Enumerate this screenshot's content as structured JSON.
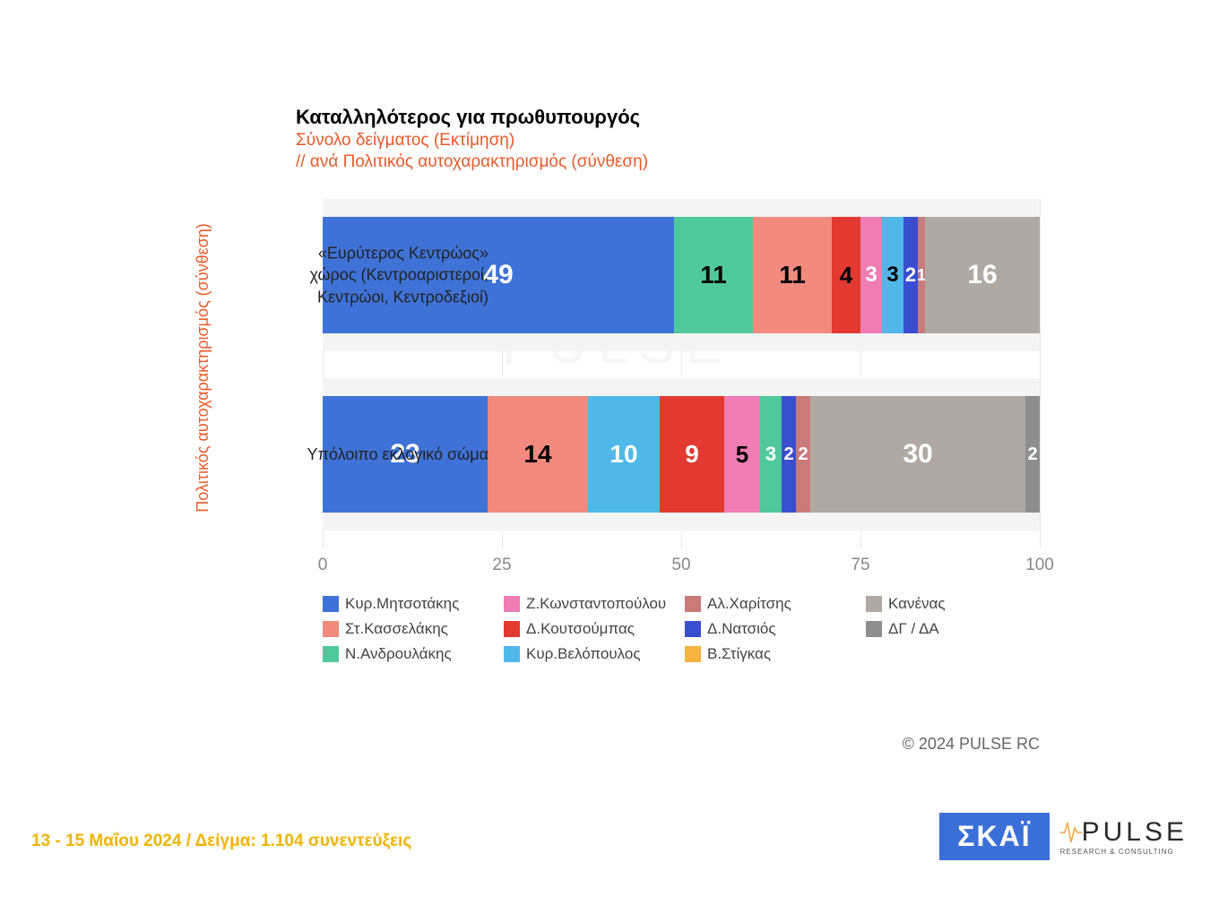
{
  "chart": {
    "type": "stacked-bar-horizontal",
    "title": "Καταλληλότερος για πρωθυπουργός",
    "subtitle1": "Σύνολο δείγματος   (Εκτίμηση)",
    "subtitle2": " // ανά Πολιτικός αυτοχαρακτηρισμός (σύνθεση)",
    "y_axis_title": "Πολιτικός αυτοχαρακτηρισμός (σύνθεση)",
    "background_color": "#ffffff",
    "row_bg_color": "#f4f4f4",
    "grid_color": "#e8e8e8",
    "title_fontsize": 22,
    "subtitle_fontsize": 19,
    "subtitle_color": "#e85a2a",
    "xlim": [
      0,
      100
    ],
    "xticks": [
      0,
      25,
      50,
      75,
      100
    ],
    "xtick_labels": [
      "0",
      "25",
      "50",
      "75",
      "100"
    ],
    "xtick_color": "#888888",
    "series": [
      {
        "key": "mitsotakis",
        "name": "Κυρ.Μητσοτάκης",
        "color": "#3f72d6"
      },
      {
        "key": "kasselakis",
        "name": "Στ.Κασσελάκης",
        "color": "#f28a7e"
      },
      {
        "key": "androulakis",
        "name": "Ν.Ανδρουλάκης",
        "color": "#4fc99b"
      },
      {
        "key": "konstantopoulou",
        "name": "Ζ.Κωνσταντοπούλου",
        "color": "#ef7cb3"
      },
      {
        "key": "koutsoumpas",
        "name": "Δ.Κουτσούμπας",
        "color": "#e23a30"
      },
      {
        "key": "velopoulos",
        "name": "Κυρ.Βελόπουλος",
        "color": "#4fb8e8"
      },
      {
        "key": "charitsis",
        "name": "Αλ.Χαρίτσης",
        "color": "#c97a7a"
      },
      {
        "key": "natsios",
        "name": "Δ.Νατσιός",
        "color": "#3a4fd0"
      },
      {
        "key": "stigkas",
        "name": "Β.Στίγκας",
        "color": "#f5b342"
      },
      {
        "key": "none",
        "name": "Κανένας",
        "color": "#b0a9a3"
      },
      {
        "key": "dk",
        "name": "ΔΓ / ΔΑ",
        "color": "#8e8e8e"
      }
    ],
    "rows": [
      {
        "label": "«Ευρύτερος Κεντρώος» χώρος (Κεντροαριστεροί, Κεντρώοι, Κεντροδεξιοί)",
        "segments": [
          {
            "series": "mitsotakis",
            "value": 49,
            "label": "49",
            "label_color": "#ffffff",
            "label_size": 30
          },
          {
            "series": "androulakis",
            "value": 11,
            "label": "11",
            "label_color": "#000000",
            "label_size": 28
          },
          {
            "series": "kasselakis",
            "value": 11,
            "label": "11",
            "label_color": "#000000",
            "label_size": 28
          },
          {
            "series": "koutsoumpas",
            "value": 4,
            "label": "4",
            "label_color": "#000000",
            "label_size": 26
          },
          {
            "series": "konstantopoulou",
            "value": 3,
            "label": "3",
            "label_color": "#ffffff",
            "label_size": 24
          },
          {
            "series": "velopoulos",
            "value": 3,
            "label": "3",
            "label_color": "#000000",
            "label_size": 24
          },
          {
            "series": "natsios",
            "value": 2,
            "label": "2",
            "label_color": "#ffffff",
            "label_size": 22
          },
          {
            "series": "charitsis",
            "value": 1,
            "label": "1",
            "label_color": "#ffffff",
            "label_size": 18
          },
          {
            "series": "none",
            "value": 16,
            "label": "16",
            "label_color": "#ffffff",
            "label_size": 30
          }
        ]
      },
      {
        "label": "Υπόλοιπο εκλογικό σώμα",
        "segments": [
          {
            "series": "mitsotakis",
            "value": 23,
            "label": "23",
            "label_color": "#ffffff",
            "label_size": 30
          },
          {
            "series": "kasselakis",
            "value": 14,
            "label": "14",
            "label_color": "#000000",
            "label_size": 28
          },
          {
            "series": "velopoulos",
            "value": 10,
            "label": "10",
            "label_color": "#ffffff",
            "label_size": 28
          },
          {
            "series": "koutsoumpas",
            "value": 9,
            "label": "9",
            "label_color": "#ffffff",
            "label_size": 28
          },
          {
            "series": "konstantopoulou",
            "value": 5,
            "label": "5",
            "label_color": "#000000",
            "label_size": 26
          },
          {
            "series": "androulakis",
            "value": 3,
            "label": "3",
            "label_color": "#ffffff",
            "label_size": 22
          },
          {
            "series": "natsios",
            "value": 2,
            "label": "2",
            "label_color": "#ffffff",
            "label_size": 20
          },
          {
            "series": "charitsis",
            "value": 2,
            "label": "2",
            "label_color": "#ffffff",
            "label_size": 20
          },
          {
            "series": "none",
            "value": 30,
            "label": "30",
            "label_color": "#ffffff",
            "label_size": 30
          },
          {
            "series": "dk",
            "value": 2,
            "label": "2",
            "label_color": "#ffffff",
            "label_size": 20
          }
        ]
      }
    ],
    "legend_layout": {
      "cols": 4,
      "rows": 3
    },
    "legend_order": [
      "mitsotakis",
      "konstantopoulou",
      "charitsis",
      "none",
      "kasselakis",
      "koutsoumpas",
      "natsios",
      "dk",
      "androulakis",
      "velopoulos",
      "stigkas"
    ]
  },
  "footer": {
    "copyright": "© 2024 PULSE RC",
    "date_sample": "13 - 15  Μαΐου 2024  /  Δείγμα:  1.104 συνεντεύξεις",
    "logo_skai": "ΣΚΑΪ",
    "logo_pulse": "PULSE",
    "logo_pulse_sub": "RESEARCH & CONSULTING"
  },
  "watermark": "PULSE"
}
